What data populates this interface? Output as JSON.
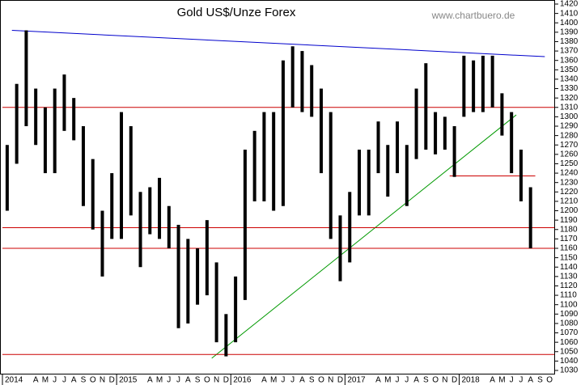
{
  "chart_data": {
    "type": "hilo",
    "title": "Gold US$/Unze Forex",
    "annotations": [
      "www.chartbuero.de"
    ],
    "categories": [
      "2014",
      null,
      null,
      "A",
      "M",
      "J",
      "J",
      "A",
      "S",
      "O",
      "N",
      "D",
      "2015",
      null,
      null,
      "A",
      "M",
      "J",
      "J",
      "A",
      "S",
      "O",
      "N",
      "D",
      "2016",
      null,
      null,
      "A",
      "M",
      "J",
      "J",
      "A",
      "S",
      "O",
      "N",
      "D",
      "2017",
      null,
      null,
      "A",
      "M",
      "J",
      "J",
      "A",
      "S",
      "O",
      "N",
      "D",
      "2018",
      null,
      null,
      "A",
      "M",
      "J",
      "J",
      "A",
      "S",
      "O"
    ],
    "series": [
      {
        "name": "high",
        "color": "#000000",
        "values": [
          1270,
          1335,
          1392,
          1330,
          1310,
          1330,
          1345,
          1320,
          1290,
          1255,
          1200,
          1240,
          1305,
          1290,
          1220,
          1225,
          1235,
          1205,
          1185,
          1170,
          1160,
          1190,
          1145,
          1090,
          1130,
          1265,
          1285,
          1305,
          1305,
          1360,
          1375,
          1370,
          1355,
          1330,
          1305,
          1195,
          1220,
          1265,
          1265,
          1295,
          1270,
          1295,
          1270,
          1330,
          1357,
          1305,
          1300,
          1290,
          1365,
          1360,
          1365,
          1365,
          1325,
          1305,
          1265,
          1225,
          null,
          null
        ]
      },
      {
        "name": "low",
        "color": "#000000",
        "values": [
          1200,
          1250,
          1290,
          1270,
          1240,
          1240,
          1285,
          1275,
          1205,
          1180,
          1130,
          1170,
          1170,
          1195,
          1140,
          1175,
          1170,
          1160,
          1075,
          1080,
          1100,
          1110,
          1060,
          1045,
          1060,
          1105,
          1210,
          1210,
          1200,
          1205,
          1310,
          1305,
          1300,
          1240,
          1170,
          1125,
          1145,
          1195,
          1195,
          1240,
          1215,
          1240,
          1205,
          1255,
          1265,
          1260,
          1265,
          1236,
          1300,
          1305,
          1305,
          1310,
          1280,
          1240,
          1210,
          1160,
          null,
          null
        ]
      }
    ],
    "lines": [
      {
        "color": "#0000cc",
        "x": [
          1,
          57
        ],
        "values": [
          1392,
          1364
        ]
      },
      {
        "color": "#009900",
        "x": [
          22,
          54
        ],
        "values": [
          1043,
          1302
        ]
      },
      {
        "color": "#cc0000",
        "x": [
          0,
          58
        ],
        "values": [
          1310,
          1310
        ]
      },
      {
        "color": "#cc0000",
        "x": [
          47,
          56
        ],
        "values": [
          1237,
          1237
        ]
      },
      {
        "color": "#cc0000",
        "x": [
          0,
          58
        ],
        "values": [
          1182,
          1182
        ]
      },
      {
        "color": "#cc0000",
        "x": [
          0,
          58
        ],
        "values": [
          1160,
          1160
        ]
      },
      {
        "color": "#cc0000",
        "x": [
          0,
          58
        ],
        "values": [
          1047,
          1047
        ]
      }
    ],
    "ylim": [
      1030,
      1420
    ],
    "yticks": [
      1030,
      1040,
      1050,
      1060,
      1070,
      1080,
      1090,
      1100,
      1110,
      1120,
      1130,
      1140,
      1150,
      1160,
      1170,
      1180,
      1190,
      1200,
      1210,
      1220,
      1230,
      1240,
      1250,
      1260,
      1270,
      1280,
      1290,
      1300,
      1310,
      1320,
      1330,
      1340,
      1350,
      1360,
      1370,
      1380,
      1390,
      1400,
      1410,
      1420
    ]
  }
}
